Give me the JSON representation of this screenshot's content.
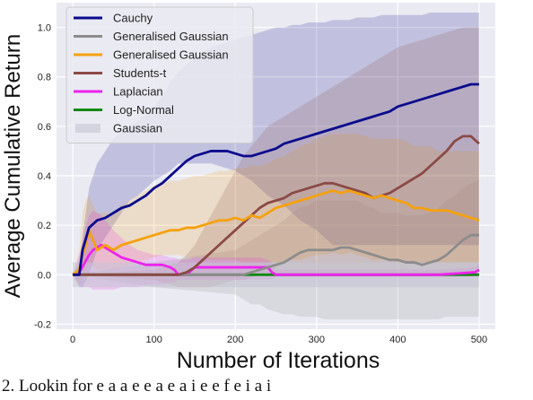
{
  "chart_data": {
    "type": "line",
    "xlabel": "Number of Iterations",
    "ylabel": "Average Cumulative Return",
    "xlim": [
      -20,
      520
    ],
    "ylim": [
      -0.22,
      1.1
    ],
    "xticks": [
      0,
      100,
      200,
      300,
      400,
      500
    ],
    "yticks": [
      -0.2,
      0.0,
      0.2,
      0.4,
      0.6,
      0.8,
      1.0
    ],
    "ytick_labels": [
      "-0.2",
      "0.0",
      "0.2",
      "0.4",
      "0.6",
      "0.8",
      "1.0"
    ],
    "grid": true,
    "legend_position": "upper-left",
    "series": [
      {
        "name": "Cauchy",
        "color": "#0b0b8c",
        "x": [
          0,
          8,
          12,
          20,
          30,
          40,
          50,
          60,
          70,
          80,
          90,
          100,
          110,
          120,
          130,
          140,
          150,
          160,
          170,
          180,
          190,
          200,
          210,
          220,
          230,
          240,
          250,
          260,
          270,
          280,
          290,
          300,
          310,
          320,
          330,
          340,
          350,
          360,
          370,
          380,
          390,
          400,
          410,
          420,
          430,
          440,
          450,
          460,
          470,
          480,
          490,
          500
        ],
        "y": [
          0,
          0.0,
          0.1,
          0.19,
          0.22,
          0.23,
          0.25,
          0.27,
          0.28,
          0.3,
          0.32,
          0.35,
          0.37,
          0.4,
          0.43,
          0.46,
          0.48,
          0.49,
          0.5,
          0.5,
          0.5,
          0.49,
          0.48,
          0.48,
          0.49,
          0.5,
          0.51,
          0.53,
          0.54,
          0.55,
          0.56,
          0.57,
          0.58,
          0.59,
          0.6,
          0.61,
          0.62,
          0.63,
          0.64,
          0.65,
          0.66,
          0.68,
          0.69,
          0.7,
          0.71,
          0.72,
          0.73,
          0.74,
          0.75,
          0.76,
          0.77,
          0.77
        ],
        "band_lo": [
          0,
          -0.05,
          -0.05,
          0.0,
          0.1,
          0.15,
          0.2,
          0.25,
          0.3,
          0.32,
          0.35,
          0.38,
          0.4,
          0.42,
          0.45,
          0.45,
          0.45,
          0.45,
          0.45,
          0.44,
          0.43,
          0.42,
          0.4,
          0.38,
          0.35,
          0.32,
          0.3,
          0.28,
          0.25,
          0.22,
          0.2,
          0.18,
          0.15,
          0.12,
          0.12,
          0.12,
          0.12,
          0.12,
          0.12,
          0.12,
          0.12,
          0.12,
          0.12,
          0.12,
          0.12,
          0.12,
          0.12,
          0.12,
          0.12,
          0.12,
          0.12,
          0.12
        ],
        "band_hi": [
          0,
          0.05,
          0.15,
          0.35,
          0.45,
          0.5,
          0.55,
          0.58,
          0.6,
          0.62,
          0.65,
          0.68,
          0.72,
          0.78,
          0.82,
          0.85,
          0.88,
          0.9,
          0.92,
          0.93,
          0.94,
          0.95,
          0.96,
          0.97,
          0.98,
          0.99,
          1.0,
          1.0,
          1.01,
          1.01,
          1.02,
          1.02,
          1.02,
          1.03,
          1.03,
          1.03,
          1.04,
          1.04,
          1.04,
          1.05,
          1.05,
          1.05,
          1.05,
          1.05,
          1.05,
          1.06,
          1.06,
          1.06,
          1.06,
          1.06,
          1.06,
          1.06
        ]
      },
      {
        "name": "Generalised Gaussian",
        "color": "#8c8c8c",
        "x": [
          0,
          100,
          200,
          210,
          220,
          230,
          240,
          250,
          260,
          270,
          280,
          290,
          300,
          310,
          320,
          330,
          340,
          350,
          360,
          370,
          380,
          390,
          400,
          410,
          420,
          430,
          440,
          450,
          460,
          470,
          480,
          490,
          500
        ],
        "y": [
          0,
          0,
          0,
          0.0,
          0.01,
          0.02,
          0.03,
          0.04,
          0.05,
          0.07,
          0.09,
          0.1,
          0.1,
          0.1,
          0.1,
          0.11,
          0.11,
          0.1,
          0.09,
          0.08,
          0.07,
          0.06,
          0.06,
          0.05,
          0.05,
          0.04,
          0.05,
          0.06,
          0.08,
          0.11,
          0.14,
          0.16,
          0.16
        ],
        "band_lo": [
          0,
          -0.05,
          -0.08,
          -0.1,
          -0.12,
          -0.12,
          -0.14,
          -0.15,
          -0.16,
          -0.16,
          -0.17,
          -0.17,
          -0.17,
          -0.18,
          -0.18,
          -0.18,
          -0.18,
          -0.18,
          -0.18,
          -0.18,
          -0.18,
          -0.18,
          -0.18,
          -0.18,
          -0.18,
          -0.18,
          -0.18,
          -0.18,
          -0.17,
          -0.17,
          -0.17,
          -0.17,
          -0.17
        ],
        "band_hi": [
          0,
          0.05,
          0.1,
          0.12,
          0.14,
          0.16,
          0.18,
          0.2,
          0.22,
          0.25,
          0.27,
          0.28,
          0.3,
          0.3,
          0.3,
          0.3,
          0.3,
          0.3,
          0.28,
          0.27,
          0.25,
          0.25,
          0.25,
          0.24,
          0.24,
          0.24,
          0.25,
          0.27,
          0.3,
          0.32,
          0.35,
          0.37,
          0.38
        ]
      },
      {
        "name": "Generalised Gaussian",
        "color": "#f5a10f",
        "x": [
          0,
          8,
          12,
          16,
          20,
          25,
          30,
          40,
          50,
          60,
          70,
          80,
          90,
          100,
          110,
          120,
          130,
          140,
          150,
          160,
          170,
          180,
          190,
          200,
          210,
          220,
          230,
          240,
          250,
          260,
          270,
          280,
          290,
          300,
          310,
          320,
          330,
          340,
          350,
          360,
          370,
          380,
          390,
          400,
          410,
          420,
          430,
          440,
          450,
          460,
          470,
          480,
          490,
          500
        ],
        "y": [
          0,
          0.02,
          0.08,
          0.12,
          0.18,
          0.14,
          0.1,
          0.12,
          0.1,
          0.12,
          0.13,
          0.14,
          0.15,
          0.16,
          0.17,
          0.18,
          0.18,
          0.19,
          0.19,
          0.2,
          0.21,
          0.22,
          0.22,
          0.23,
          0.22,
          0.24,
          0.23,
          0.25,
          0.27,
          0.28,
          0.29,
          0.3,
          0.31,
          0.32,
          0.33,
          0.34,
          0.33,
          0.34,
          0.33,
          0.32,
          0.31,
          0.32,
          0.31,
          0.3,
          0.29,
          0.27,
          0.27,
          0.26,
          0.26,
          0.26,
          0.25,
          0.24,
          0.23,
          0.22
        ],
        "band_lo": [
          0,
          -0.05,
          0.0,
          0.02,
          0.05,
          0.03,
          0.02,
          0.02,
          0.02,
          0.03,
          0.04,
          0.05,
          0.06,
          0.07,
          0.08,
          0.08,
          0.08,
          0.07,
          0.07,
          0.07,
          0.06,
          0.06,
          0.06,
          0.06,
          0.05,
          0.05,
          0.05,
          0.05,
          0.05,
          0.05,
          0.06,
          0.06,
          0.07,
          0.08,
          0.08,
          0.09,
          0.08,
          0.09,
          0.08,
          0.07,
          0.06,
          0.06,
          0.06,
          0.05,
          0.05,
          0.05,
          0.05,
          0.05,
          0.05,
          0.05,
          0.05,
          0.05,
          0.05,
          0.05
        ],
        "band_hi": [
          0,
          0.1,
          0.25,
          0.3,
          0.32,
          0.28,
          0.25,
          0.25,
          0.25,
          0.28,
          0.3,
          0.32,
          0.34,
          0.36,
          0.37,
          0.38,
          0.38,
          0.39,
          0.4,
          0.4,
          0.41,
          0.42,
          0.42,
          0.43,
          0.43,
          0.44,
          0.44,
          0.45,
          0.47,
          0.48,
          0.5,
          0.52,
          0.53,
          0.55,
          0.56,
          0.57,
          0.57,
          0.57,
          0.57,
          0.56,
          0.55,
          0.55,
          0.55,
          0.55,
          0.54,
          0.52,
          0.52,
          0.52,
          0.5,
          0.5,
          0.5,
          0.5,
          0.5,
          0.5
        ]
      },
      {
        "name": "Students-t",
        "color": "#8b4a45",
        "x": [
          0,
          100,
          130,
          140,
          150,
          160,
          170,
          180,
          190,
          200,
          210,
          220,
          230,
          240,
          250,
          260,
          270,
          280,
          290,
          300,
          310,
          320,
          330,
          340,
          350,
          360,
          370,
          380,
          390,
          400,
          410,
          420,
          430,
          440,
          450,
          460,
          470,
          480,
          490,
          500
        ],
        "y": [
          0,
          0,
          0.0,
          0.01,
          0.03,
          0.06,
          0.09,
          0.12,
          0.15,
          0.18,
          0.21,
          0.24,
          0.27,
          0.29,
          0.3,
          0.31,
          0.33,
          0.34,
          0.35,
          0.36,
          0.37,
          0.37,
          0.36,
          0.35,
          0.34,
          0.33,
          0.31,
          0.32,
          0.33,
          0.35,
          0.37,
          0.39,
          0.41,
          0.44,
          0.47,
          0.5,
          0.54,
          0.56,
          0.56,
          0.53
        ],
        "band_lo": [
          0,
          -0.02,
          -0.05,
          -0.05,
          -0.05,
          -0.05,
          -0.05,
          -0.04,
          -0.03,
          -0.02,
          -0.02,
          -0.01,
          0.0,
          0.0,
          0.0,
          0.0,
          0.0,
          0.0,
          0.0,
          0.0,
          0.0,
          0.0,
          0.0,
          0.0,
          0.0,
          0.0,
          0.0,
          0.0,
          0.0,
          0.0,
          0.0,
          0.0,
          0.0,
          0.0,
          0.0,
          0.0,
          0.0,
          0.0,
          0.0,
          0.0
        ],
        "band_hi": [
          0,
          0.02,
          0.05,
          0.08,
          0.12,
          0.18,
          0.24,
          0.3,
          0.36,
          0.42,
          0.48,
          0.52,
          0.56,
          0.6,
          0.62,
          0.64,
          0.66,
          0.68,
          0.7,
          0.72,
          0.74,
          0.76,
          0.78,
          0.8,
          0.82,
          0.84,
          0.86,
          0.88,
          0.9,
          0.92,
          0.93,
          0.94,
          0.95,
          0.96,
          0.97,
          0.98,
          0.99,
          1.0,
          1.0,
          1.0
        ]
      },
      {
        "name": "Laplacian",
        "color": "#ee22ee",
        "x": [
          0,
          10,
          15,
          20,
          25,
          30,
          35,
          40,
          50,
          60,
          70,
          80,
          90,
          100,
          110,
          120,
          125,
          130,
          140,
          150,
          160,
          170,
          180,
          190,
          200,
          210,
          220,
          230,
          240,
          245,
          250,
          300,
          350,
          400,
          450,
          495,
          500
        ],
        "y": [
          0,
          0.02,
          0.05,
          0.08,
          0.1,
          0.11,
          0.12,
          0.11,
          0.09,
          0.07,
          0.06,
          0.05,
          0.04,
          0.04,
          0.04,
          0.03,
          0.02,
          0.0,
          0.0,
          0.03,
          0.03,
          0.03,
          0.03,
          0.03,
          0.03,
          0.03,
          0.03,
          0.03,
          0.03,
          0.01,
          0.0,
          0.0,
          0.0,
          0.0,
          0.0,
          0.01,
          0.02
        ],
        "band_lo": [
          0,
          -0.05,
          -0.05,
          -0.05,
          -0.06,
          -0.06,
          -0.06,
          -0.06,
          -0.06,
          -0.05,
          -0.05,
          -0.05,
          -0.04,
          -0.04,
          -0.04,
          -0.03,
          -0.03,
          -0.02,
          -0.02,
          -0.02,
          -0.02,
          -0.02,
          -0.02,
          -0.02,
          -0.02,
          -0.02,
          -0.02,
          -0.02,
          -0.02,
          -0.02,
          -0.01,
          -0.01,
          -0.01,
          -0.01,
          -0.01,
          -0.01,
          -0.01
        ],
        "band_hi": [
          0,
          0.1,
          0.18,
          0.24,
          0.26,
          0.25,
          0.24,
          0.22,
          0.18,
          0.15,
          0.12,
          0.1,
          0.09,
          0.08,
          0.08,
          0.07,
          0.07,
          0.06,
          0.06,
          0.07,
          0.07,
          0.07,
          0.07,
          0.07,
          0.07,
          0.07,
          0.07,
          0.07,
          0.06,
          0.05,
          0.02,
          0.02,
          0.02,
          0.02,
          0.02,
          0.03,
          0.04
        ]
      },
      {
        "name": "Log-Normal",
        "color": "#118811",
        "x": [
          0,
          100,
          200,
          300,
          400,
          500
        ],
        "y": [
          0,
          0,
          0,
          0,
          0,
          0
        ]
      },
      {
        "name": "Gaussian",
        "color": "#c4c4d4",
        "band_only": true,
        "x": [
          0,
          500
        ],
        "band_lo": [
          -0.05,
          -0.05
        ],
        "band_hi": [
          0.05,
          0.05
        ]
      }
    ]
  },
  "caption": {
    "text": "2. Lookin for e a a e  e        a e a i     e       e     f  e  i   a i"
  }
}
